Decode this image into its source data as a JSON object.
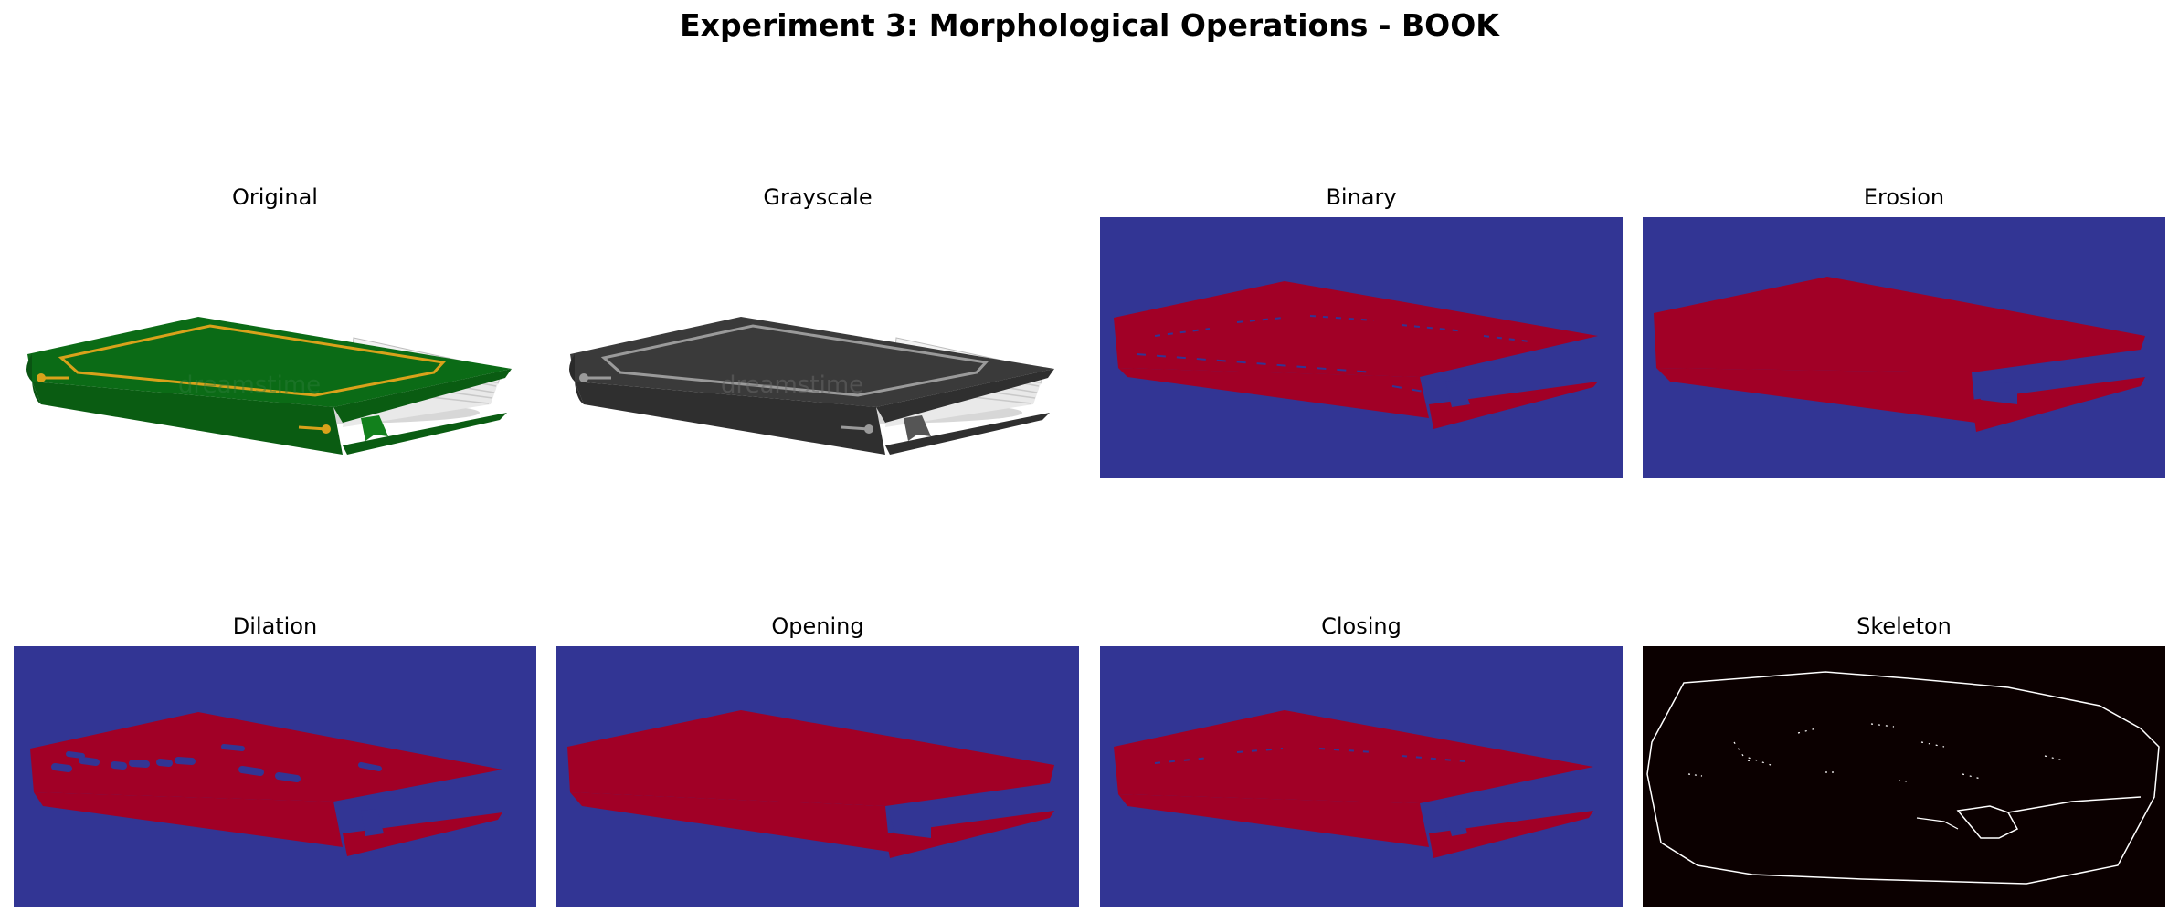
{
  "title": "Experiment 3: Morphological Operations - BOOK",
  "watermark": "dreamstime",
  "panels": [
    {
      "id": "original",
      "title": "Original"
    },
    {
      "id": "grayscale",
      "title": "Grayscale"
    },
    {
      "id": "binary",
      "title": "Binary"
    },
    {
      "id": "erosion",
      "title": "Erosion"
    },
    {
      "id": "dilation",
      "title": "Dilation"
    },
    {
      "id": "opening",
      "title": "Opening"
    },
    {
      "id": "closing",
      "title": "Closing"
    },
    {
      "id": "skeleton",
      "title": "Skeleton"
    }
  ],
  "colors": {
    "cover_green": "#0b6b16",
    "gold": "#d9a21b",
    "background_blue": "#323594",
    "foreground_red": "#a10026",
    "skeleton_bg": "#0b0000",
    "skeleton_line": "#ffffff"
  }
}
